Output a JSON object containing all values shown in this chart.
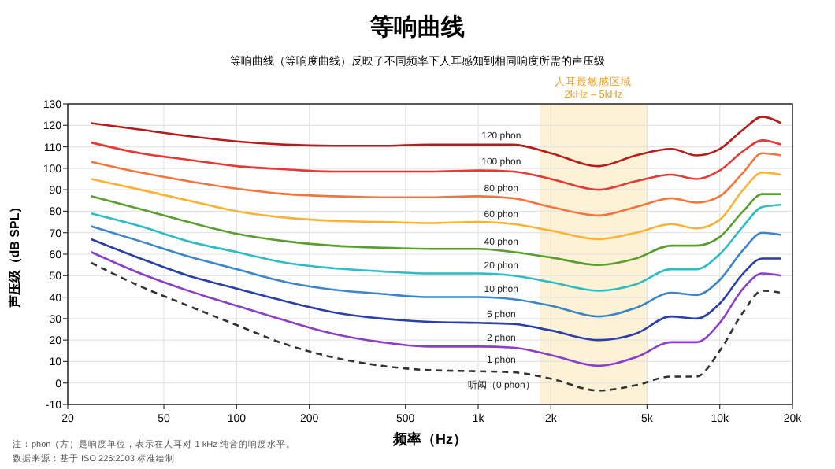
{
  "chart_data": {
    "type": "line",
    "title": "等响曲线",
    "subtitle": "等响曲线（等响度曲线）反映了不同频率下人耳感知到相同响度所需的声压级",
    "xlabel": "频率（Hz）",
    "ylabel": "声压级（dB SPL）",
    "log": "x",
    "grid": true,
    "legend": false,
    "marker": "none",
    "xlim": [
      20,
      20000
    ],
    "xticks": [
      20,
      50,
      100,
      200,
      500,
      {
        "value": 1000,
        "label": "1k"
      },
      {
        "value": 2000,
        "label": "2k"
      },
      {
        "value": 5000,
        "label": "5k"
      },
      {
        "value": 10000,
        "label": "10k"
      },
      {
        "value": 20000,
        "label": "20k"
      }
    ],
    "ylim": [
      -10,
      130
    ],
    "yticks": [
      -10,
      0,
      10,
      20,
      30,
      40,
      50,
      60,
      70,
      80,
      90,
      100,
      110,
      120,
      130
    ],
    "x": [
      25,
      40,
      63,
      100,
      160,
      250,
      400,
      630,
      1000,
      1400,
      2000,
      3150,
      4500,
      6300,
      8000,
      10000,
      12500,
      15000,
      18000
    ],
    "series": [
      {
        "name": "120 phon",
        "color": "#b71c1c",
        "values": [
          121,
          118,
          115,
          112.5,
          111,
          110.5,
          110.5,
          111,
          111,
          111,
          107,
          101,
          106,
          109,
          106,
          109,
          118,
          124,
          121
        ]
      },
      {
        "name": "100 phon",
        "color": "#e53935",
        "values": [
          112,
          107,
          104,
          101,
          99.5,
          98.5,
          98.5,
          98.5,
          99,
          98.5,
          95,
          90,
          94,
          97,
          95,
          99,
          108,
          113,
          111
        ]
      },
      {
        "name": "80 phon",
        "color": "#f4743b",
        "values": [
          103,
          98,
          94,
          90.5,
          88,
          87,
          86.5,
          86.5,
          87,
          86,
          82,
          78,
          82,
          86,
          84,
          87,
          98,
          107,
          106
        ]
      },
      {
        "name": "60 phon",
        "color": "#f9b233",
        "values": [
          95,
          90,
          85,
          80,
          77,
          75.5,
          75,
          74.5,
          75,
          74,
          71,
          67,
          70,
          74,
          72,
          76,
          90,
          98,
          97
        ]
      },
      {
        "name": "40 phon",
        "color": "#5a9e2f",
        "values": [
          87,
          81,
          75,
          69.5,
          66,
          64,
          63,
          62.5,
          62.5,
          61,
          58.5,
          55,
          58,
          64,
          64,
          68,
          80,
          88,
          88
        ]
      },
      {
        "name": "20 phon",
        "color": "#2bbcc4",
        "values": [
          79,
          73,
          66,
          61,
          56,
          53.5,
          52,
          51,
          51,
          50,
          47,
          43,
          46,
          53,
          53,
          60,
          73,
          82,
          83
        ]
      },
      {
        "name": "10 phon",
        "color": "#3a86c8",
        "values": [
          73,
          66,
          59,
          53,
          47,
          43.5,
          41.5,
          40,
          40,
          39,
          36,
          31,
          35,
          42,
          41,
          48,
          62,
          70,
          69
        ]
      },
      {
        "name": "5 phon",
        "color": "#2a3fa8",
        "values": [
          67,
          58,
          50,
          44,
          38,
          33,
          30,
          28.5,
          28,
          27.5,
          24.5,
          20,
          23,
          31,
          30,
          37,
          51,
          58,
          58
        ]
      },
      {
        "name": "2 phon",
        "color": "#8b3fc6",
        "values": [
          61,
          51,
          43,
          36,
          29,
          23,
          19,
          17,
          17,
          16.5,
          13,
          8,
          12,
          19,
          19,
          28,
          44,
          51,
          50
        ]
      },
      {
        "name": "听阈（0 phon）",
        "color": "#333333",
        "line_style": "dashed",
        "values": [
          56,
          45,
          36,
          27,
          18,
          12,
          8,
          6,
          5.5,
          5,
          2,
          -3.5,
          -1,
          3,
          3,
          15,
          33,
          43,
          42
        ]
      }
    ],
    "bands": [
      {
        "axis": "x",
        "from": 1800,
        "to": 5000,
        "label": "人耳最敏感区域\n2kHz – 5kHz",
        "color": "#fdf1d6"
      }
    ],
    "annotations": [
      "1 phon",
      "注：phon（方）是响度单位，表示在人耳对 1 kHz 纯音的响度水平。",
      "数据来源：基于 ISO 226:2003 标准绘制"
    ]
  }
}
